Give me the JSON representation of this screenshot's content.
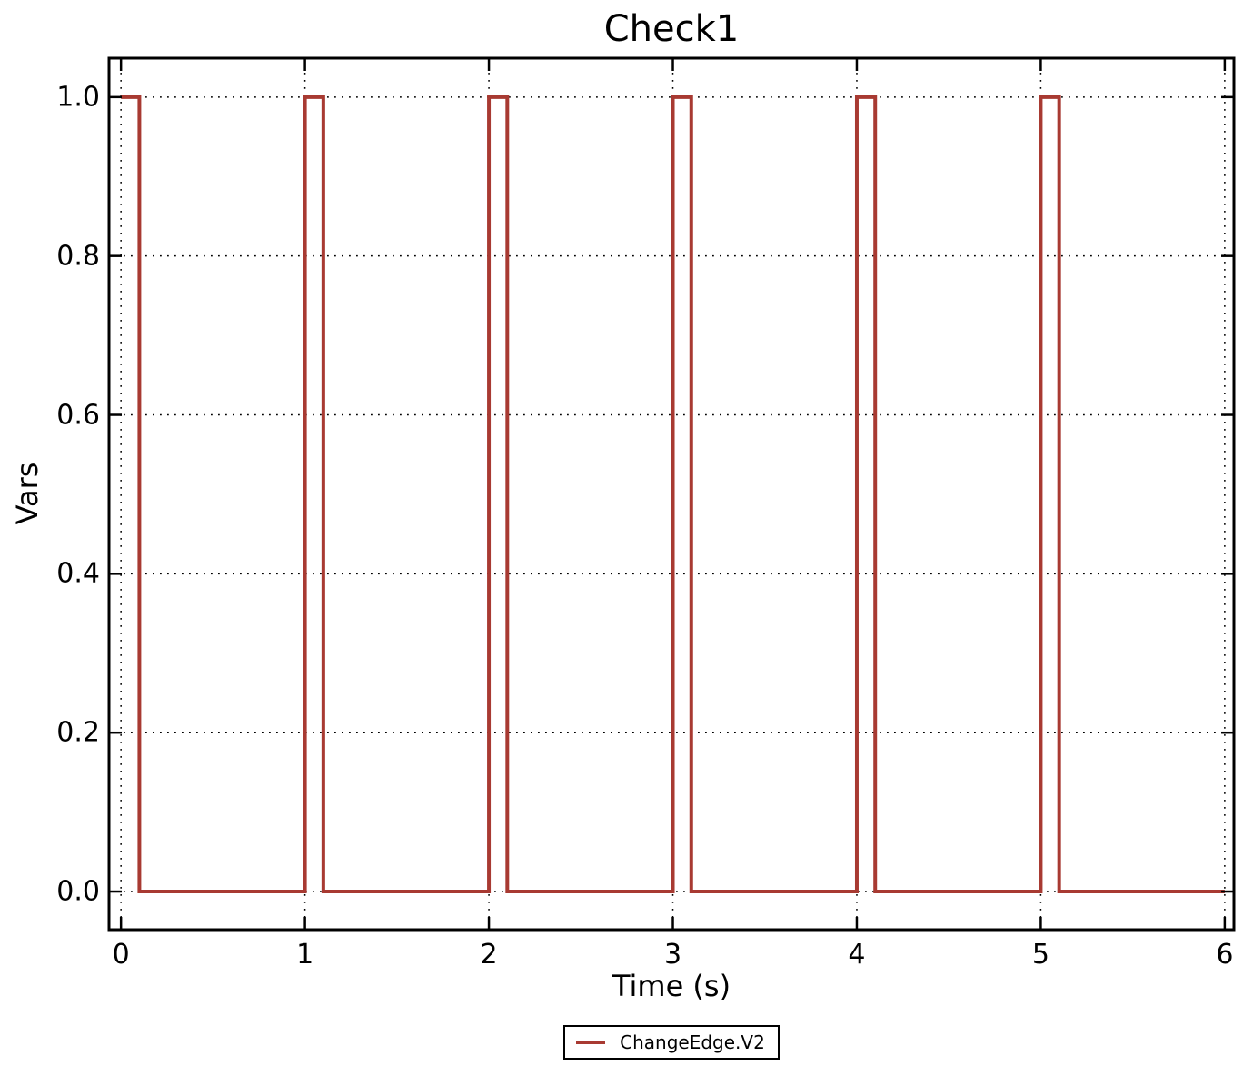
{
  "chart_data": {
    "type": "line",
    "title": "Check1",
    "xlabel": "Time (s)",
    "ylabel": "Vars",
    "grid": "dotted",
    "grid_color": "#000000",
    "axes_color": "#000000",
    "background_color": "#ffffff",
    "xlim": [
      -0.065,
      6.05
    ],
    "ylim": [
      -0.048,
      1.049
    ],
    "xticks": {
      "values": [
        0,
        1,
        2,
        3,
        4,
        5,
        6
      ],
      "labels": [
        "0",
        "1",
        "2",
        "3",
        "4",
        "5",
        "6"
      ]
    },
    "yticks": {
      "values": [
        0.0,
        0.2,
        0.4,
        0.6,
        0.8,
        1.0
      ],
      "labels": [
        "0.0",
        "0.2",
        "0.4",
        "0.6",
        "0.8",
        "1.0"
      ]
    },
    "legend": {
      "position": "below-plot-center"
    },
    "series": [
      {
        "name": "ChangeEdge.V2",
        "color": "#a83a32",
        "step": "post",
        "x": [
          0,
          0.1,
          1,
          1.1,
          2,
          2.1,
          3,
          3.1,
          4,
          4.1,
          5,
          5.1,
          6
        ],
        "y": [
          1,
          0,
          1,
          0,
          1,
          0,
          1,
          0,
          1,
          0,
          1,
          0,
          0
        ]
      }
    ]
  }
}
